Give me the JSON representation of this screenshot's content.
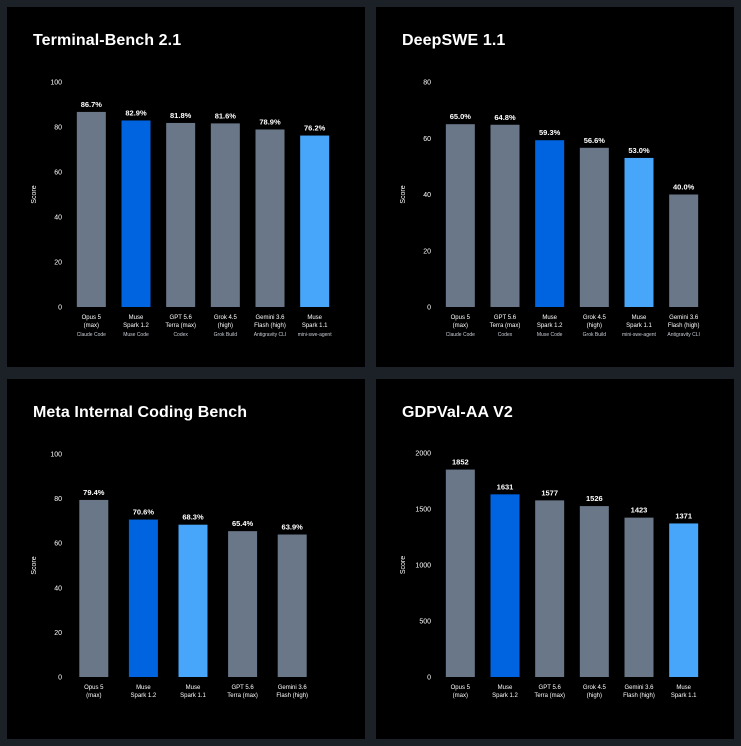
{
  "colors": {
    "page_background": "#1c2127",
    "panel_background": "#000000",
    "gray_bar": "#6a7789",
    "dark_blue_bar": "#0064e0",
    "light_blue_bar": "#47a5fa",
    "text": "#ffffff"
  },
  "chart_data": [
    {
      "type": "bar",
      "title": "Terminal-Bench 2.1",
      "ylabel": "Score",
      "xlabel": "",
      "ylim": [
        0,
        100
      ],
      "yticks": [
        0,
        20,
        40,
        60,
        80,
        100
      ],
      "grid": false,
      "legend": "none",
      "categories": [
        {
          "label": [
            "Opus 5",
            "(max)"
          ],
          "sub": "Claude Code",
          "value": 86.7,
          "value_label": "86.7%",
          "color": "gray"
        },
        {
          "label": [
            "Muse",
            "Spark 1.2"
          ],
          "sub": "Muse Code",
          "value": 82.9,
          "value_label": "82.9%",
          "color": "dark_blue"
        },
        {
          "label": [
            "GPT 5.6",
            "Terra (max)"
          ],
          "sub": "Codex",
          "value": 81.8,
          "value_label": "81.8%",
          "color": "gray"
        },
        {
          "label": [
            "Grok 4.5",
            "(high)"
          ],
          "sub": "Grok Build",
          "value": 81.6,
          "value_label": "81.6%",
          "color": "gray"
        },
        {
          "label": [
            "Gemini 3.6",
            "Flash (high)"
          ],
          "sub": "Antigravity CLI",
          "value": 78.9,
          "value_label": "78.9%",
          "color": "gray"
        },
        {
          "label": [
            "Muse",
            "Spark 1.1"
          ],
          "sub": "mini-swe-agent",
          "value": 76.2,
          "value_label": "76.2%",
          "color": "light_blue"
        }
      ]
    },
    {
      "type": "bar",
      "title": "DeepSWE 1.1",
      "ylabel": "Score",
      "xlabel": "",
      "ylim": [
        0,
        80
      ],
      "yticks": [
        0,
        20,
        40,
        60,
        80
      ],
      "grid": false,
      "legend": "none",
      "categories": [
        {
          "label": [
            "Opus 5",
            "(max)"
          ],
          "sub": "Claude Code",
          "value": 65.0,
          "value_label": "65.0%",
          "color": "gray"
        },
        {
          "label": [
            "GPT 5.6",
            "Terra (max)"
          ],
          "sub": "Codex",
          "value": 64.8,
          "value_label": "64.8%",
          "color": "gray"
        },
        {
          "label": [
            "Muse",
            "Spark 1.2"
          ],
          "sub": "Muse Code",
          "value": 59.3,
          "value_label": "59.3%",
          "color": "dark_blue"
        },
        {
          "label": [
            "Grok 4.5",
            "(high)"
          ],
          "sub": "Grok Build",
          "value": 56.6,
          "value_label": "56.6%",
          "color": "gray"
        },
        {
          "label": [
            "Muse",
            "Spark 1.1"
          ],
          "sub": "mini-swe-agent",
          "value": 53.0,
          "value_label": "53.0%",
          "color": "light_blue"
        },
        {
          "label": [
            "Gemini 3.6",
            "Flash (high)"
          ],
          "sub": "Antigravity CLI",
          "value": 40.0,
          "value_label": "40.0%",
          "color": "gray"
        }
      ]
    },
    {
      "type": "bar",
      "title": "Meta Internal Coding Bench",
      "ylabel": "Score",
      "xlabel": "",
      "ylim": [
        0,
        100
      ],
      "yticks": [
        0,
        20,
        40,
        60,
        80,
        100
      ],
      "grid": false,
      "legend": "none",
      "categories": [
        {
          "label": [
            "Opus 5",
            "(max)"
          ],
          "value": 79.4,
          "value_label": "79.4%",
          "color": "gray"
        },
        {
          "label": [
            "Muse",
            "Spark 1.2"
          ],
          "value": 70.6,
          "value_label": "70.6%",
          "color": "dark_blue"
        },
        {
          "label": [
            "Muse",
            "Spark 1.1"
          ],
          "value": 68.3,
          "value_label": "68.3%",
          "color": "light_blue"
        },
        {
          "label": [
            "GPT 5.6",
            "Terra (max)"
          ],
          "value": 65.4,
          "value_label": "65.4%",
          "color": "gray"
        },
        {
          "label": [
            "Gemini 3.6",
            "Flash (high)"
          ],
          "value": 63.9,
          "value_label": "63.9%",
          "color": "gray"
        }
      ]
    },
    {
      "type": "bar",
      "title": "GDPVal-AA V2",
      "ylabel": "Score",
      "xlabel": "",
      "ylim": [
        0,
        2000
      ],
      "yticks": [
        0,
        500,
        1000,
        1500,
        2000
      ],
      "grid": false,
      "legend": "none",
      "categories": [
        {
          "label": [
            "Opus 5",
            "(max)"
          ],
          "value": 1852,
          "value_label": "1852",
          "color": "gray"
        },
        {
          "label": [
            "Muse",
            "Spark 1.2"
          ],
          "value": 1631,
          "value_label": "1631",
          "color": "dark_blue"
        },
        {
          "label": [
            "GPT 5.6",
            "Terra (max)"
          ],
          "value": 1577,
          "value_label": "1577",
          "color": "gray"
        },
        {
          "label": [
            "Grok 4.5",
            "(high)"
          ],
          "value": 1526,
          "value_label": "1526",
          "color": "gray"
        },
        {
          "label": [
            "Gemini 3.6",
            "Flash (high)"
          ],
          "value": 1423,
          "value_label": "1423",
          "color": "gray"
        },
        {
          "label": [
            "Muse",
            "Spark 1.1"
          ],
          "value": 1371,
          "value_label": "1371",
          "color": "light_blue"
        }
      ]
    }
  ]
}
